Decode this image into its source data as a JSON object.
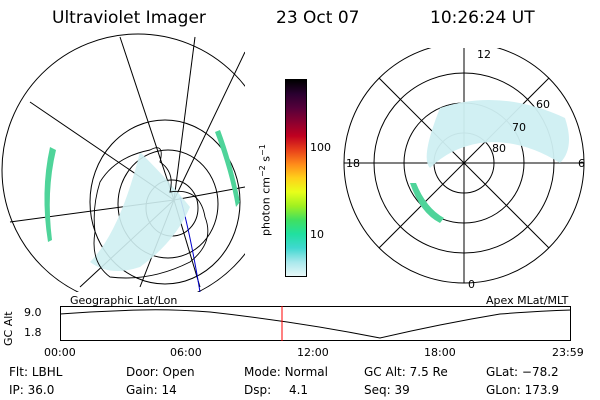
{
  "header": {
    "instrument": "Ultraviolet Imager",
    "date": "23 Oct 07",
    "time": "10:26:24 UT"
  },
  "colorbar": {
    "label": "photon cm",
    "label_sup1": "−2",
    "label_mid": "s",
    "label_sup2": "−1",
    "ticks": [
      "100",
      "10"
    ],
    "colors": [
      "#000000",
      "#2a0030",
      "#55003a",
      "#8a0030",
      "#c00020",
      "#e8401a",
      "#ff8a1a",
      "#ffd01a",
      "#e8ff1a",
      "#a0f020",
      "#40e060",
      "#20e0a0",
      "#40d8d0",
      "#a8e8ec",
      "#e8f8f8"
    ]
  },
  "left_panel": {
    "caption": "Geographic Lat/Lon"
  },
  "right_panel": {
    "caption": "Apex MLat/MLT",
    "mlt_labels": [
      "12",
      "18",
      "6",
      "0"
    ],
    "lat_labels": [
      "60",
      "70",
      "80"
    ]
  },
  "timeline": {
    "ylabel": "GC Alt",
    "y_ticks": [
      "9.0",
      "1.8"
    ],
    "x_ticks": [
      "00:00",
      "06:00",
      "12:00",
      "18:00",
      "23:59"
    ],
    "marker_time": "10:26",
    "marker_color": "#ff0000"
  },
  "info": {
    "row1": [
      {
        "label": "Flt:",
        "value": "LBHL"
      },
      {
        "label": "Door:",
        "value": "Open"
      },
      {
        "label": "Mode:",
        "value": "Normal"
      },
      {
        "label": "GC Alt:",
        "value": "7.5 Re"
      },
      {
        "label": "GLat:",
        "value": "−78.2"
      }
    ],
    "row2": [
      {
        "label": "IP:",
        "value": "36.0"
      },
      {
        "label": "Gain:",
        "value": "14"
      },
      {
        "label": "Dsp:",
        "value": "4.1"
      },
      {
        "label": "Seq:",
        "value": "39"
      },
      {
        "label": "GLon:",
        "value": "173.9"
      }
    ]
  }
}
